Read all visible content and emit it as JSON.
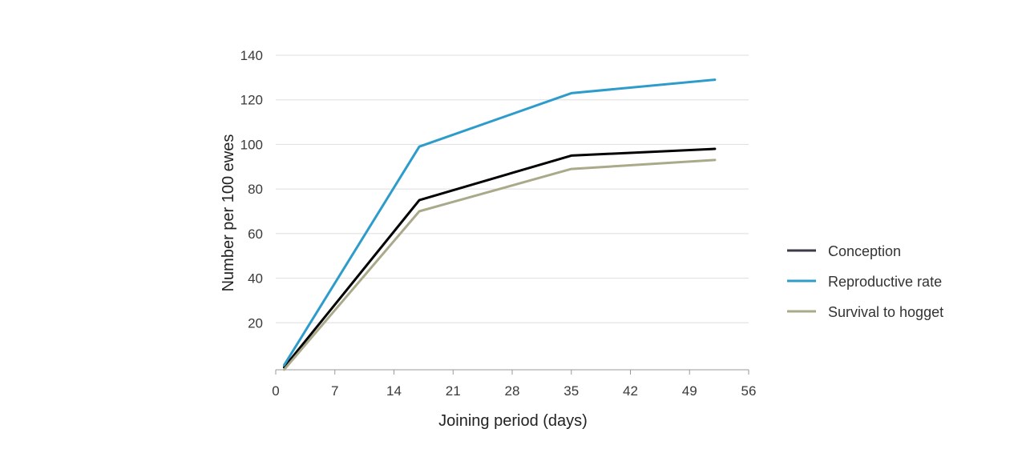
{
  "chart_data": {
    "type": "line",
    "title": "",
    "xlabel": "Joining period (days)",
    "ylabel": "Number per 100 ewes",
    "xlim": [
      0,
      56
    ],
    "ylim": [
      0,
      140
    ],
    "xticks": [
      0,
      7,
      14,
      21,
      28,
      35,
      42,
      49,
      56
    ],
    "yticks": [
      20,
      40,
      60,
      80,
      100,
      120,
      140
    ],
    "grid": "horizontal",
    "legend_position": "right",
    "series": [
      {
        "name": "Conception",
        "color": "#000000",
        "legend_color": "#3a3a4a",
        "x": [
          1,
          17,
          35,
          52
        ],
        "y": [
          0,
          75,
          95,
          98
        ]
      },
      {
        "name": "Reproductive rate",
        "color": "#2e9ccb",
        "legend_color": "#2e9ccb",
        "x": [
          1,
          17,
          35,
          52
        ],
        "y": [
          1,
          99,
          123,
          129
        ]
      },
      {
        "name": "Survival to hogget",
        "color": "#aaa98a",
        "legend_color": "#aaa98a",
        "x": [
          1,
          17,
          35,
          52
        ],
        "y": [
          -1,
          70,
          89,
          93
        ]
      }
    ]
  }
}
